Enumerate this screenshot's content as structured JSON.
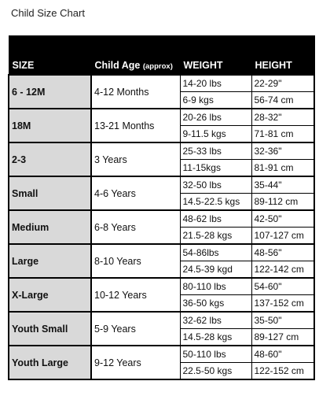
{
  "title": "Child Size Chart",
  "headers": {
    "size": "SIZE",
    "age": "Child Age",
    "age_note": "(approx)",
    "weight": "WEIGHT",
    "height": "HEIGHT"
  },
  "rows": [
    {
      "size": "6 - 12M",
      "age": "4-12 Months",
      "weight_lbs": "14-20 lbs",
      "weight_kgs": "6-9 kgs",
      "height_in": "22-29\"",
      "height_cm": "56-74 cm"
    },
    {
      "size": "18M",
      "age": "13-21 Months",
      "weight_lbs": "20-26 lbs",
      "weight_kgs": "9-11.5 kgs",
      "height_in": "28-32\"",
      "height_cm": "71-81 cm"
    },
    {
      "size": "2-3",
      "age": "3 Years",
      "weight_lbs": "25-33 lbs",
      "weight_kgs": "11-15kgs",
      "height_in": "32-36\"",
      "height_cm": "81-91 cm"
    },
    {
      "size": "Small",
      "age": "4-6 Years",
      "weight_lbs": "32-50 lbs",
      "weight_kgs": "14.5-22.5 kgs",
      "height_in": "35-44\"",
      "height_cm": "89-112 cm"
    },
    {
      "size": "Medium",
      "age": "6-8 Years",
      "weight_lbs": "48-62 lbs",
      "weight_kgs": "21.5-28 kgs",
      "height_in": "42-50\"",
      "height_cm": "107-127 cm"
    },
    {
      "size": "Large",
      "age": "8-10 Years",
      "weight_lbs": "54-86lbs",
      "weight_kgs": "24.5-39 kgd",
      "height_in": "48-56\"",
      "height_cm": "122-142 cm"
    },
    {
      "size": "X-Large",
      "age": "10-12 Years",
      "weight_lbs": "80-110 lbs",
      "weight_kgs": "36-50 kgs",
      "height_in": "54-60\"",
      "height_cm": "137-152 cm"
    },
    {
      "size": "Youth Small",
      "age": "5-9 Years",
      "weight_lbs": "32-62 lbs",
      "weight_kgs": "14.5-28 kgs",
      "height_in": "35-50\"",
      "height_cm": "89-127 cm"
    },
    {
      "size": "Youth Large",
      "age": "9-12 Years",
      "weight_lbs": "50-110 lbs",
      "weight_kgs": "22.5-50 kgs",
      "height_in": "48-60\"",
      "height_cm": "122-152 cm"
    }
  ]
}
